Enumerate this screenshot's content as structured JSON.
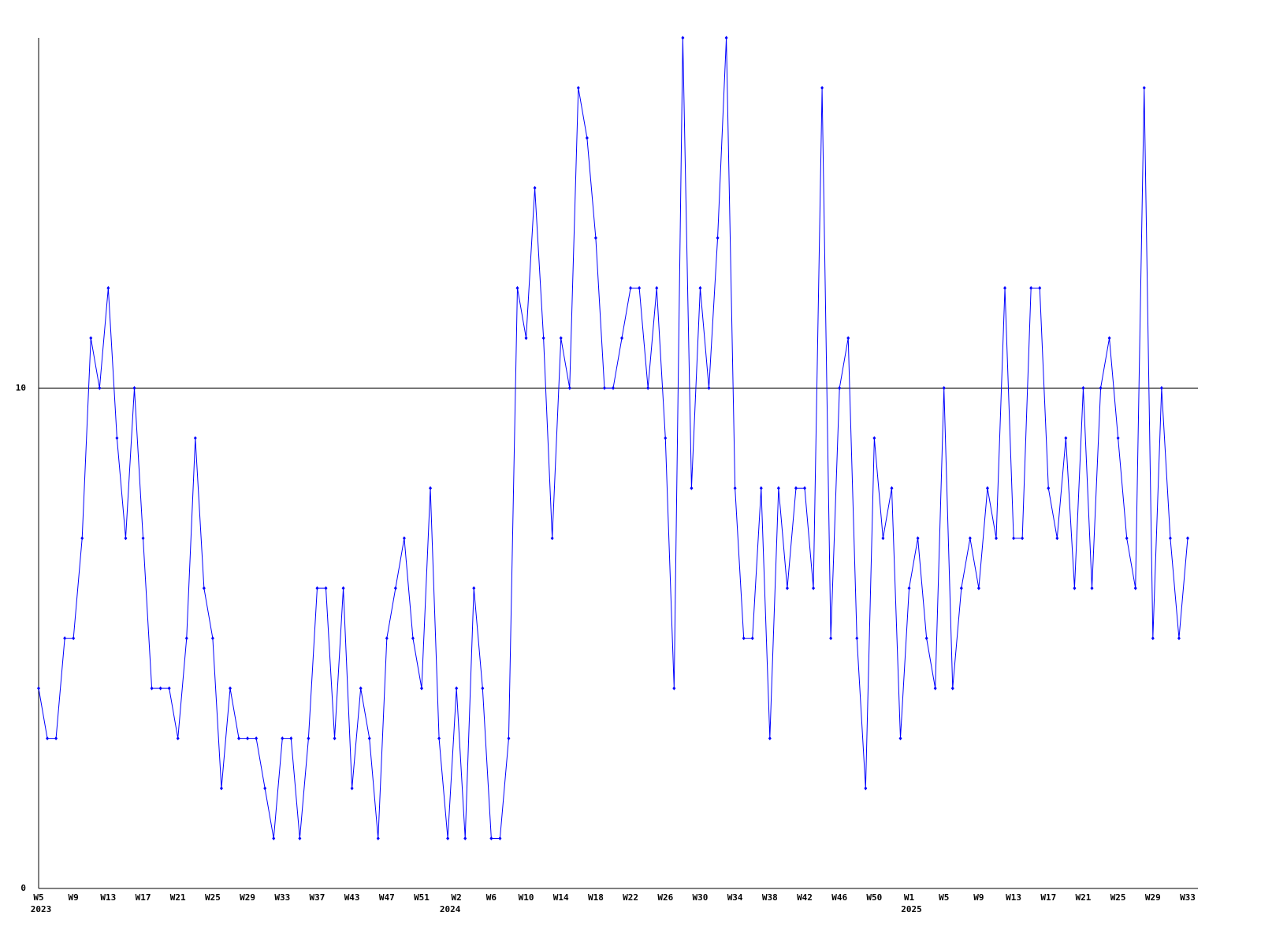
{
  "chart_data": {
    "type": "line",
    "categories": [
      "W5",
      null,
      null,
      null,
      "W9",
      null,
      null,
      null,
      "W13",
      null,
      null,
      null,
      "W17",
      null,
      null,
      null,
      "W21",
      null,
      null,
      null,
      "W25",
      null,
      null,
      null,
      "W29",
      null,
      null,
      null,
      "W33",
      null,
      null,
      null,
      "W37",
      null,
      null,
      null,
      "W43",
      null,
      null,
      null,
      "W47",
      null,
      null,
      null,
      "W51",
      null,
      null,
      null,
      "W2",
      null,
      null,
      null,
      "W6",
      null,
      null,
      null,
      "W10",
      null,
      null,
      null,
      "W14",
      null,
      null,
      null,
      "W18",
      null,
      null,
      null,
      "W22",
      null,
      null,
      null,
      "W26",
      null,
      null,
      null,
      "W30",
      null,
      null,
      null,
      "W34",
      null,
      null,
      null,
      "W38",
      null,
      null,
      null,
      "W42",
      null,
      null,
      null,
      "W46",
      null,
      null,
      null,
      "W50",
      null,
      null,
      null,
      "W1",
      null,
      null,
      null,
      "W5",
      null,
      null,
      null,
      "W9",
      null,
      null,
      null,
      "W13",
      null,
      null,
      null,
      "W17",
      null,
      null,
      null,
      "W21",
      null,
      null,
      null,
      "W25",
      null,
      null,
      null,
      "W29",
      null,
      null,
      null,
      "W33"
    ],
    "x_groups": [
      {
        "label": "2023",
        "at": 0
      },
      {
        "label": "2024",
        "at": 47
      },
      {
        "label": "2025",
        "at": 100
      }
    ],
    "series": [
      {
        "color": "#0000ff",
        "values": [
          4,
          3,
          3,
          5,
          5,
          7,
          11,
          10,
          12,
          9,
          7,
          10,
          7,
          4,
          4,
          4,
          3,
          5,
          9,
          6,
          5,
          2,
          4,
          3,
          3,
          3,
          2,
          1,
          3,
          3,
          1,
          3,
          6,
          6,
          3,
          6,
          2,
          4,
          3,
          1,
          5,
          6,
          7,
          5,
          4,
          8,
          3,
          1,
          4,
          1,
          6,
          4,
          1,
          1,
          3,
          12,
          11,
          14,
          11,
          7,
          11,
          10,
          16,
          15,
          13,
          10,
          10,
          11,
          12,
          12,
          10,
          12,
          9,
          4,
          17,
          8,
          12,
          10,
          13,
          17,
          8,
          5,
          5,
          8,
          3,
          8,
          6,
          8,
          8,
          6,
          16,
          5,
          10,
          11,
          5,
          2,
          9,
          7,
          8,
          3,
          6,
          7,
          5,
          4,
          10,
          4,
          6,
          7,
          6,
          8,
          7,
          12,
          7,
          7,
          12,
          12,
          8,
          7,
          9,
          6,
          10,
          6,
          10,
          11,
          9,
          7,
          6,
          16,
          5,
          10,
          7,
          5,
          7
        ]
      }
    ],
    "ylim": [
      0,
      17
    ],
    "yticks": [
      0,
      10
    ],
    "grid": true
  }
}
